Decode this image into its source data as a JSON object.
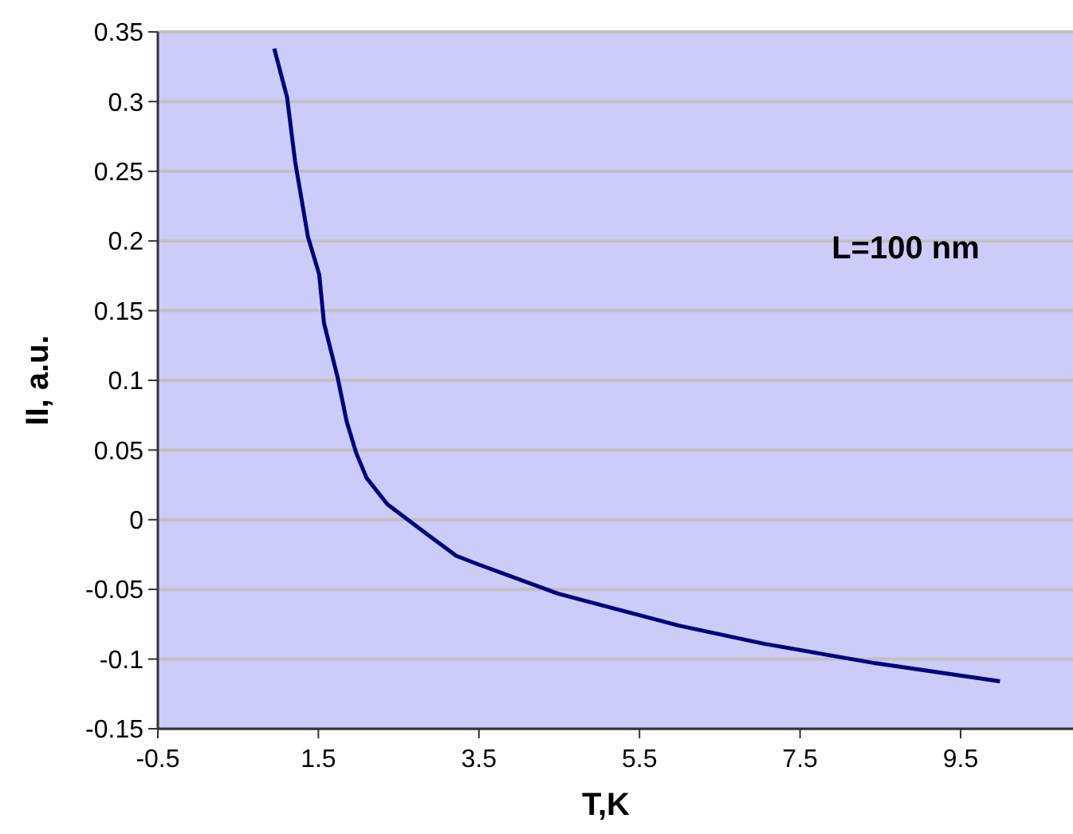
{
  "chart_data": {
    "type": "line",
    "xlabel": "T,K",
    "ylabel": "II, a.u.",
    "annotations": [
      "L=100 nm"
    ],
    "x": [
      0.95,
      1.11,
      1.21,
      1.37,
      1.51,
      1.57,
      1.74,
      1.85,
      1.97,
      2.1,
      2.36,
      2.89,
      3.22,
      3.49,
      4.48,
      5.99,
      7.05,
      8.44,
      9.99
    ],
    "series": [
      {
        "color": "#000080",
        "values": [
          0.338,
          0.303,
          0.257,
          0.203,
          0.176,
          0.141,
          0.102,
          0.071,
          0.048,
          0.03,
          0.011,
          -0.012,
          -0.026,
          -0.032,
          -0.053,
          -0.076,
          -0.089,
          -0.103,
          -0.116
        ]
      }
    ],
    "xlim": [
      -0.5,
      10.9
    ],
    "xticks": [
      -0.5,
      1.5,
      3.5,
      5.5,
      7.5,
      9.5
    ],
    "ylim": [
      -0.15,
      0.35
    ],
    "yticks": [
      -0.15,
      -0.1,
      -0.05,
      0,
      0.05,
      0.1,
      0.15,
      0.2,
      0.25,
      0.3,
      0.35
    ],
    "grid": "y",
    "marker": "none",
    "line_style": "solid"
  }
}
